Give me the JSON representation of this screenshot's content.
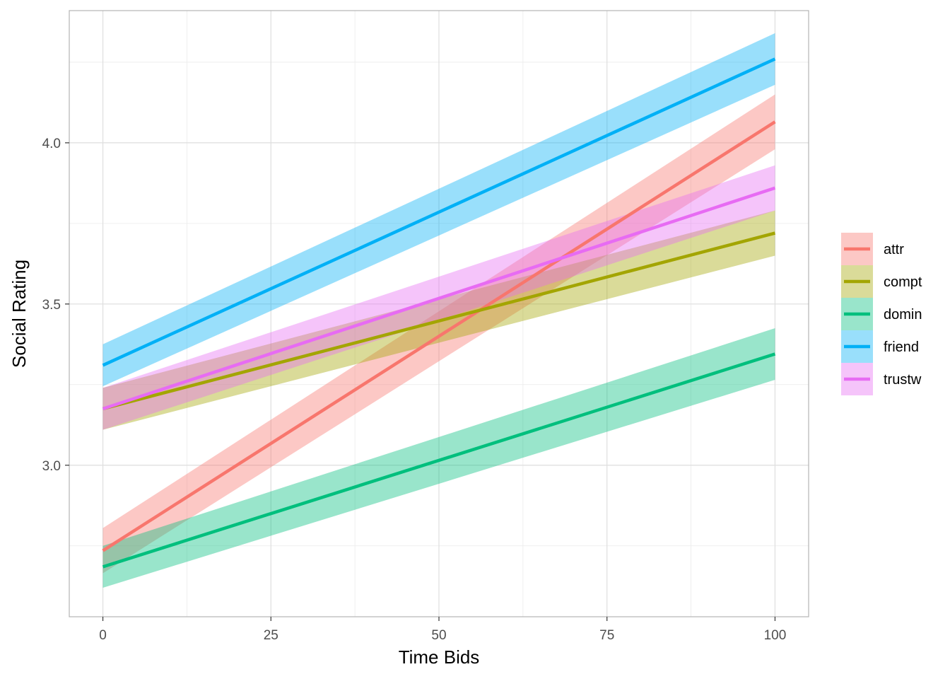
{
  "chart_data": {
    "type": "line",
    "xlabel": "Time Bids",
    "ylabel": "Social Rating",
    "xlim": [
      -5,
      105
    ],
    "ylim": [
      2.53,
      4.41
    ],
    "x_ticks": [
      0,
      25,
      50,
      75,
      100
    ],
    "x_tick_labels": [
      "0",
      "25",
      "50",
      "75",
      "100"
    ],
    "x_minor_ticks": [
      12.5,
      37.5,
      62.5,
      87.5
    ],
    "y_ticks": [
      3.0,
      3.5,
      4.0
    ],
    "y_tick_labels": [
      "3.0",
      "3.5",
      "4.0"
    ],
    "y_minor_ticks": [
      2.75,
      3.25,
      3.75,
      4.25
    ],
    "grid": true,
    "legend_position": "right",
    "series": [
      {
        "name": "attr",
        "color": "#F8766D",
        "x": [
          0,
          100
        ],
        "y": [
          2.735,
          4.065
        ],
        "lower": [
          2.665,
          3.98
        ],
        "upper": [
          2.805,
          4.15
        ]
      },
      {
        "name": "compt",
        "color": "#A3A500",
        "x": [
          0,
          100
        ],
        "y": [
          3.175,
          3.72
        ],
        "lower": [
          3.11,
          3.65
        ],
        "upper": [
          3.24,
          3.79
        ]
      },
      {
        "name": "domin",
        "color": "#00BF7D",
        "x": [
          0,
          100
        ],
        "y": [
          2.685,
          3.345
        ],
        "lower": [
          2.62,
          3.265
        ],
        "upper": [
          2.75,
          3.425
        ]
      },
      {
        "name": "friend",
        "color": "#00B0F6",
        "x": [
          0,
          100
        ],
        "y": [
          3.31,
          4.26
        ],
        "lower": [
          3.245,
          4.18
        ],
        "upper": [
          3.375,
          4.34
        ]
      },
      {
        "name": "trustw",
        "color": "#E76BF3",
        "x": [
          0,
          100
        ],
        "y": [
          3.175,
          3.86
        ],
        "lower": [
          3.11,
          3.79
        ],
        "upper": [
          3.24,
          3.93
        ]
      }
    ]
  }
}
